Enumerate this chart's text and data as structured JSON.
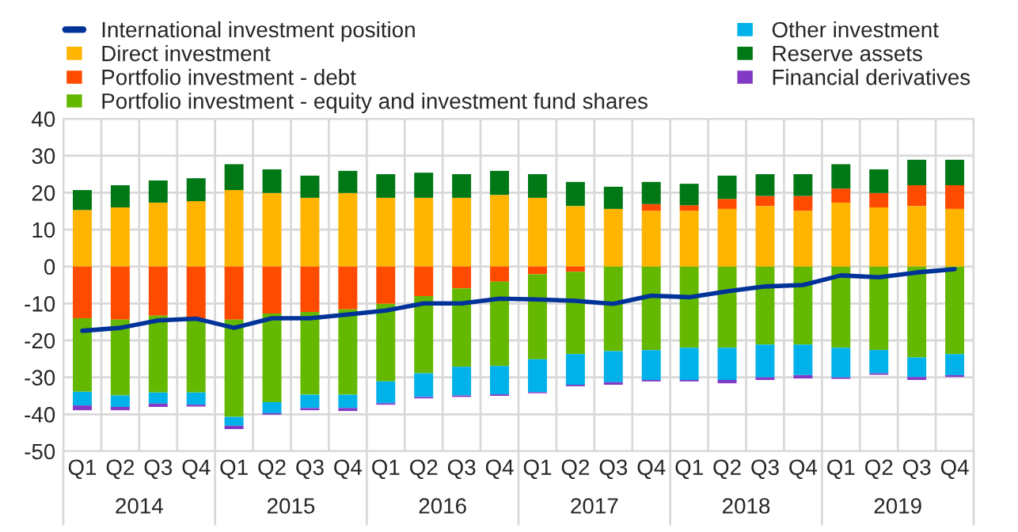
{
  "chart_data": {
    "type": "bar",
    "stacked": true,
    "categories": [
      "Q1",
      "Q2",
      "Q3",
      "Q4",
      "Q1",
      "Q2",
      "Q3",
      "Q4",
      "Q1",
      "Q2",
      "Q3",
      "Q4",
      "Q1",
      "Q2",
      "Q3",
      "Q4",
      "Q1",
      "Q2",
      "Q3",
      "Q4",
      "Q1",
      "Q2",
      "Q3",
      "Q4"
    ],
    "series": [
      {
        "name": "International investment position",
        "type": "line",
        "color": "#003399",
        "values": [
          -17.4,
          -16.6,
          -14.6,
          -14.1,
          -16.6,
          -14.0,
          -14.0,
          -13.0,
          -11.9,
          -10.0,
          -10.0,
          -8.7,
          -8.9,
          -9.3,
          -10.1,
          -7.9,
          -8.3,
          -6.7,
          -5.4,
          -5.0,
          -2.4,
          -2.9,
          -1.6,
          -0.7
        ]
      },
      {
        "name": "Direct investment",
        "color": "#ffb400",
        "values": [
          15.3,
          16.0,
          17.3,
          17.7,
          20.7,
          19.9,
          18.6,
          19.9,
          18.6,
          18.6,
          18.6,
          19.4,
          18.6,
          16.4,
          15.6,
          15.1,
          15.1,
          15.6,
          16.4,
          15.1,
          17.3,
          16.0,
          16.4,
          15.6
        ]
      },
      {
        "name": "Portfolio investment - debt",
        "color": "#ff4b00",
        "values": [
          -14.0,
          -14.4,
          -13.3,
          -14.0,
          -14.4,
          -12.7,
          -12.3,
          -11.6,
          -10.1,
          -8.0,
          -5.9,
          -4.1,
          -2.1,
          -1.4,
          0,
          1.8,
          1.5,
          2.7,
          2.7,
          4.0,
          3.8,
          3.9,
          5.6,
          6.4
        ]
      },
      {
        "name": "Portfolio investment - equity and investment fund shares",
        "color": "#65b800",
        "values": [
          -19.9,
          -20.5,
          -20.8,
          -20.1,
          -26.3,
          -24.0,
          -22.4,
          -23.1,
          -21.0,
          -20.9,
          -21.2,
          -22.8,
          -23.0,
          -22.3,
          -22.9,
          -22.6,
          -22.0,
          -22.0,
          -21.1,
          -21.1,
          -22.0,
          -22.6,
          -24.6,
          -23.7
        ]
      },
      {
        "name": "Other investment",
        "color": "#00b1ea",
        "values": [
          -3.7,
          -3.1,
          -3.0,
          -3.3,
          -2.4,
          -3.0,
          -3.6,
          -3.6,
          -5.9,
          -6.4,
          -7.8,
          -7.7,
          -8.9,
          -8.3,
          -8.4,
          -8.1,
          -8.7,
          -8.7,
          -8.9,
          -8.3,
          -8.0,
          -6.3,
          -5.3,
          -5.7
        ]
      },
      {
        "name": "Reserve assets",
        "color": "#007816",
        "values": [
          5.4,
          6.0,
          6.0,
          6.2,
          7.0,
          6.4,
          6.0,
          6.0,
          6.4,
          6.8,
          6.4,
          6.5,
          6.4,
          6.5,
          6.0,
          6.0,
          5.8,
          6.3,
          5.9,
          5.9,
          6.6,
          6.4,
          6.9,
          6.9
        ]
      },
      {
        "name": "Financial derivatives",
        "color": "#8139c6",
        "values": [
          -1.3,
          -0.9,
          -0.9,
          -0.5,
          -0.9,
          -0.4,
          -0.6,
          -0.8,
          -0.4,
          -0.4,
          -0.4,
          -0.4,
          -0.3,
          -0.4,
          -0.7,
          -0.4,
          -0.4,
          -0.9,
          -0.7,
          -0.9,
          -0.4,
          -0.4,
          -0.8,
          -0.5
        ]
      }
    ],
    "annotations": [
      "2014",
      "2015",
      "2016",
      "2017",
      "2018",
      "2019"
    ],
    "ylim": [
      -50,
      40
    ],
    "yticks": [
      -50,
      -40,
      -30,
      -20,
      -10,
      0,
      10,
      20,
      30,
      40
    ],
    "grid": true,
    "legend": "top"
  }
}
